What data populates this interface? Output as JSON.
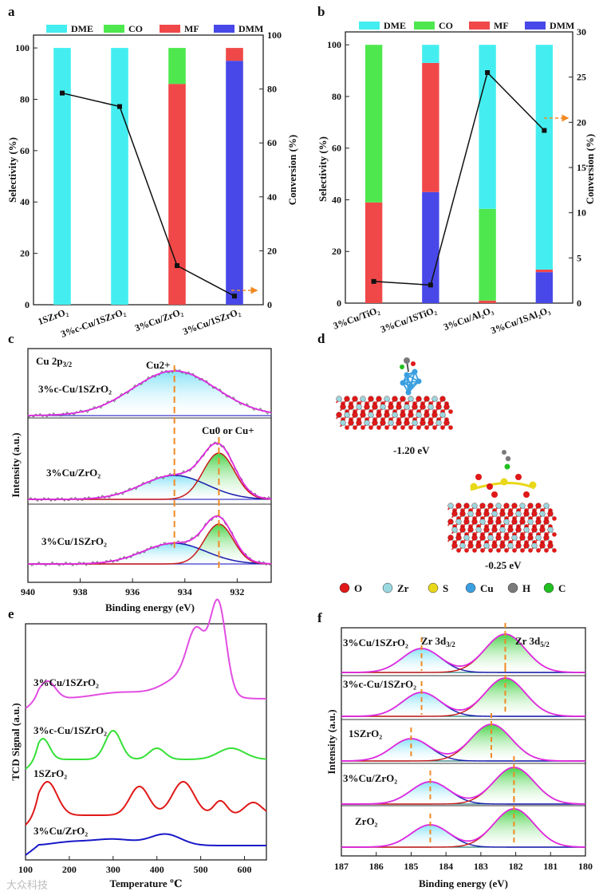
{
  "panels": {
    "a": "a",
    "b": "b",
    "c": "c",
    "d": "d",
    "e": "e",
    "f": "f"
  },
  "colors": {
    "DME": "#44eef0",
    "CO": "#4ee84e",
    "MF": "#f04848",
    "DMM": "#4848e8",
    "line": "#111111",
    "arrow": "#f08a24"
  },
  "chart_data": [
    {
      "id": "a",
      "type": "bar",
      "legend": [
        "DME",
        "CO",
        "MF",
        "DMM"
      ],
      "categories": [
        "1SZrO2",
        "3%c-Cu/1SZrO2",
        "3%Cu/ZrO2",
        "3%Cu/1SZrO2"
      ],
      "category_labels": [
        "1SZrO₂",
        "3%c-Cu/1SZrO₂",
        "3%Cu/ZrO₂",
        "3%Cu/1SZrO₂"
      ],
      "series": [
        {
          "name": "DME",
          "values": [
            100,
            100,
            0,
            0
          ]
        },
        {
          "name": "CO",
          "values": [
            0,
            0,
            14,
            0
          ]
        },
        {
          "name": "MF",
          "values": [
            0,
            0,
            86,
            5
          ]
        },
        {
          "name": "DMM",
          "values": [
            0,
            0,
            0,
            95
          ]
        }
      ],
      "conversion": [
        78.5,
        73.5,
        14.5,
        3.2
      ],
      "ylabel": "Selectivity (%)",
      "y2label": "Conversion (%)",
      "ylim": [
        0,
        105
      ],
      "y2lim": [
        0,
        100
      ],
      "yticks": [
        0,
        20,
        40,
        60,
        80,
        100
      ],
      "y2ticks": [
        0,
        20,
        40,
        60,
        80,
        100
      ]
    },
    {
      "id": "b",
      "type": "bar",
      "legend": [
        "DME",
        "CO",
        "MF",
        "DMM"
      ],
      "categories": [
        "3%Cu/TiO2",
        "3%Cu/1STiO2",
        "3%Cu/Al2O3",
        "3%Cu/1SAl2O3"
      ],
      "category_labels": [
        "3%Cu/TiO₂",
        "3%Cu/1STiO₂",
        "3%Cu/Al₂O₃",
        "3%Cu/1SAl₂O₃"
      ],
      "series": [
        {
          "name": "DMM",
          "values": [
            0,
            43,
            0,
            12
          ]
        },
        {
          "name": "MF",
          "values": [
            39,
            50,
            1,
            1
          ]
        },
        {
          "name": "CO",
          "values": [
            61,
            0,
            35.5,
            0
          ]
        },
        {
          "name": "DME",
          "values": [
            0,
            7,
            63.5,
            87
          ]
        }
      ],
      "conversion": [
        2.4,
        2.0,
        25.5,
        19.1
      ],
      "ylabel": "Selectivity (%)",
      "y2label": "Conversion (%)",
      "ylim": [
        0,
        105
      ],
      "y2lim": [
        0,
        30
      ],
      "yticks": [
        0,
        20,
        40,
        60,
        80,
        100
      ],
      "y2ticks": [
        0,
        5,
        10,
        15,
        20,
        25,
        30
      ]
    },
    {
      "id": "c",
      "type": "line",
      "title": "Cu 2p3/2",
      "title_main": "Cu 2p",
      "title_sub": "3/2",
      "xlabel": "Binding energy (eV)",
      "ylabel": "Intensity (a.u.)",
      "xlim": [
        940,
        930.7
      ],
      "xticks": [
        940,
        938,
        936,
        934,
        932
      ],
      "peaks": {
        "Cu2plus": 934.4,
        "Cu0": 932.7
      },
      "peak_label_1": "Cu2+",
      "peak_label_2": "Cu0 or Cu+",
      "spectra": [
        "3%c-Cu/1SZrO2",
        "3%Cu/ZrO2",
        "3%Cu/1SZrO2"
      ],
      "spectra_labels": [
        "3%c-Cu/1SZrO₂",
        "3%Cu/ZrO₂",
        "3%Cu/1SZrO₂"
      ]
    },
    {
      "id": "e",
      "type": "line",
      "xlabel": "Temperature ℃",
      "ylabel": "TCD Signal (a.u.)",
      "xlim": [
        100,
        650
      ],
      "xticks": [
        100,
        200,
        300,
        400,
        500,
        600
      ],
      "series": [
        {
          "name": "3%Cu/1SZrO2",
          "label": "3%Cu/1SZrO₂",
          "color": "#e24de2"
        },
        {
          "name": "3%c-Cu/1SZrO2",
          "label": "3%c-Cu/1SZrO₂",
          "color": "#35e035"
        },
        {
          "name": "1SZrO2",
          "label": "1SZrO₂",
          "color": "#e01818"
        },
        {
          "name": "3%Cu/ZrO2",
          "label": "3%Cu/ZrO₂",
          "color": "#1818c8"
        }
      ]
    },
    {
      "id": "f",
      "type": "line",
      "xlabel": "Binding energy (eV)",
      "ylabel": "Intensity (a.u.)",
      "xlim": [
        187,
        180
      ],
      "xticks": [
        187,
        186,
        185,
        184,
        183,
        182,
        181,
        180
      ],
      "label_3d32_main": "Zr 3d",
      "label_3d32_sub": "3/2",
      "label_3d52_main": "Zr 3d",
      "label_3d52_sub": "5/2",
      "spectra": [
        "3%Cu/1SZrO2",
        "3%c-Cu/1SZrO2",
        "1SZrO2",
        "3%Cu/ZrO2",
        "ZrO2"
      ],
      "spectra_labels": [
        "3%Cu/1SZrO₂",
        "3%c-Cu/1SZrO₂",
        "1SZrO₂",
        "3%Cu/ZrO₂",
        "ZrO₂"
      ],
      "peak_positions": [
        [
          184.7,
          182.3
        ],
        [
          184.7,
          182.3
        ],
        [
          185.0,
          182.7
        ],
        [
          184.45,
          182.05
        ],
        [
          184.45,
          182.05
        ]
      ]
    }
  ],
  "structure": {
    "energy_1": "-1.20 eV",
    "energy_2": "-0.25 eV",
    "legend": [
      {
        "label": "O",
        "color": "#e01818"
      },
      {
        "label": "Zr",
        "color": "#9ad8e0"
      },
      {
        "label": "S",
        "color": "#e8d818"
      },
      {
        "label": "Cu",
        "color": "#3a9fe0"
      },
      {
        "label": "H",
        "color": "#7a7a7a"
      },
      {
        "label": "C",
        "color": "#20c020"
      }
    ]
  },
  "watermark": "大众科技"
}
